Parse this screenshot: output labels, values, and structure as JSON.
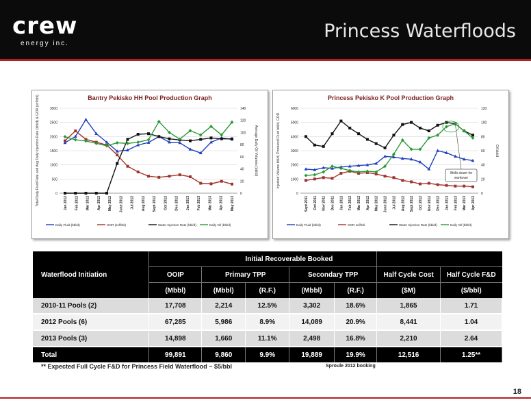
{
  "header": {
    "logo_word": "crew",
    "logo_sub": "energy inc.",
    "title": "Princess Waterfloods"
  },
  "chart_data": [
    {
      "type": "line",
      "title": "Bantry Pekisko HH Pool Production Graph",
      "ylabel": "Total Daily Fluid Rate and Avg Daily Injection Rate (bbl/d) & GOR (scf/bbl)",
      "ylabel_right": "Average Daily Oil Volumes (bbl/d)",
      "ylim": [
        0,
        3000
      ],
      "ylim_right": [
        0,
        140
      ],
      "yticks": [
        "3000",
        "2500",
        "2000",
        "1500",
        "1000",
        "500",
        "0"
      ],
      "yticks_right": [
        "140",
        "120",
        "100",
        "80",
        "60",
        "40",
        "20",
        "0"
      ],
      "categories": [
        "Jan 2012",
        "Feb 2012",
        "Mar 2012",
        "Apr 2012",
        "May 2012",
        "June 2012",
        "Jul 2012",
        "Aug 2012",
        "Sept 2012",
        "Oct 2012",
        "Nov 2012",
        "Dec 2012",
        "Jan 2013",
        "Feb 2013",
        "Mar 2013",
        "Apr 2013",
        "May 2013"
      ],
      "tick_labels": [
        "Jan 2012",
        "Feb 2012",
        "Mar 2012",
        "Apr 2012",
        "May 2012",
        "June 2012",
        "Jul 2012",
        "Aug 2012",
        "Sept 2012",
        "Oct 2012",
        "Dec 2012",
        "Jan 2013",
        "Feb 2013",
        "Mar 2013",
        "Apr 2013",
        "May 2013"
      ],
      "series": [
        {
          "name": "Daily Fluid (bbl/d)",
          "color": "#1f3fbf",
          "marker": "triangle",
          "axis": "left",
          "values": [
            1780,
            2000,
            2600,
            2100,
            1800,
            1480,
            1520,
            1700,
            1790,
            2000,
            1800,
            1780,
            1550,
            1420,
            1800,
            1950,
            1900
          ]
        },
        {
          "name": "GOR (scf/bbl)",
          "color": "#a0342c",
          "marker": "square",
          "axis": "left",
          "values": [
            1850,
            2200,
            1900,
            1800,
            1700,
            1350,
            950,
            750,
            600,
            560,
            600,
            650,
            580,
            350,
            330,
            420,
            320
          ]
        },
        {
          "name": "Water Injection Rate (bbl/d)",
          "color": "#111111",
          "marker": "square",
          "axis": "left",
          "values": [
            0,
            0,
            0,
            0,
            0,
            1050,
            1900,
            2080,
            2100,
            2000,
            1920,
            1880,
            1850,
            1900,
            1950,
            1920,
            1920
          ]
        },
        {
          "name": "Daily Oil (bbl/d)",
          "color": "#2a9a35",
          "marker": "diamond",
          "axis": "right",
          "values": [
            93,
            88,
            86,
            82,
            78,
            83,
            82,
            84,
            88,
            118,
            100,
            89,
            103,
            96,
            110,
            96,
            117
          ]
        }
      ]
    },
    {
      "type": "line",
      "title": "Princess Pekisko K Pool Production Graph",
      "ylabel": "Injected Volume bbl/d, Produced Fluid bbl/d, GOR",
      "ylabel_right": "Oil bbl/d",
      "ylim": [
        0,
        6000
      ],
      "ylim_right": [
        0,
        120
      ],
      "yticks": [
        "6000",
        "5000",
        "4000",
        "3000",
        "2000",
        "1000",
        "0"
      ],
      "yticks_right": [
        "120",
        "100",
        "80",
        "60",
        "40",
        "20",
        "0"
      ],
      "categories": [
        "Sept 2011",
        "Oct 2011",
        "Nov 2011",
        "Dec 2011",
        "Jan 2012",
        "Feb 2012",
        "Mar 2012",
        "Apr 2012",
        "May 2012",
        "June 2012",
        "Jul 2012",
        "Aug 2012",
        "Sept 2012",
        "Oct 2012",
        "Nov 2012",
        "Dec 2012",
        "Jan 2013",
        "Feb 2013",
        "Mar 2013",
        "Apr 2013"
      ],
      "series": [
        {
          "name": "Daily Fluid (bbl/d)",
          "color": "#1f3fbf",
          "marker": "triangle",
          "axis": "left",
          "values": [
            1700,
            1650,
            1800,
            1750,
            1850,
            1900,
            1950,
            2000,
            2100,
            2600,
            2550,
            2450,
            2400,
            2200,
            1700,
            3000,
            2850,
            2600,
            2400,
            2300
          ]
        },
        {
          "name": "GOR scf/bbl",
          "color": "#a0342c",
          "marker": "square",
          "axis": "left",
          "values": [
            900,
            1000,
            1100,
            1050,
            1400,
            1550,
            1400,
            1450,
            1350,
            1200,
            1100,
            900,
            800,
            650,
            700,
            600,
            550,
            500,
            500,
            450
          ]
        },
        {
          "name": "Water Injection Rate (bbl/d)",
          "color": "#111111",
          "marker": "square",
          "axis": "left",
          "values": [
            4000,
            3400,
            3300,
            4200,
            5100,
            4600,
            4200,
            3800,
            3500,
            3200,
            4100,
            4850,
            5000,
            4600,
            4400,
            4800,
            5000,
            4900,
            4400,
            4100
          ]
        },
        {
          "name": "Daily Oil (bbl/d)",
          "color": "#2a9a35",
          "marker": "diamond",
          "axis": "right",
          "values": [
            25,
            26,
            30,
            38,
            35,
            32,
            30,
            31,
            30,
            38,
            55,
            75,
            62,
            62,
            78,
            82,
            94,
            98,
            88,
            78
          ]
        }
      ],
      "annotation": "Wells down for workover"
    }
  ],
  "table": {
    "group_header": "Initial Recoverable Booked",
    "header_row": [
      "Waterflood Initiation",
      "OOIP",
      "Primary TPP",
      "Secondary TPP",
      "Half Cycle Cost",
      "Half Cycle F&D"
    ],
    "unit_row": [
      "(Mbbl)",
      "(Mbbl)",
      "(R.F.)",
      "(Mbbl)",
      "(R.F.)",
      "($M)",
      "($/bbl)"
    ],
    "rows": [
      [
        "2010-11 Pools (2)",
        "17,708",
        "2,214",
        "12.5%",
        "3,302",
        "18.6%",
        "1,865",
        "1.71"
      ],
      [
        "2012 Pools (6)",
        "67,285",
        "5,986",
        "8.9%",
        "14,089",
        "20.9%",
        "8,441",
        "1.04"
      ],
      [
        "2013 Pools (3)",
        "14,898",
        "1,660",
        "11.1%",
        "2,498",
        "16.8%",
        "2,210",
        "2.64"
      ]
    ],
    "total_row": [
      "Total",
      "99,891",
      "9,860",
      "9.9%",
      "19,889",
      "19.9%",
      "12,516",
      "1.25**"
    ]
  },
  "footnote": "** Expected Full Cycle F&D for Princess Field Waterflood ~ $5/bbl",
  "source": "Sproule 2012 booking",
  "page_number": "18"
}
